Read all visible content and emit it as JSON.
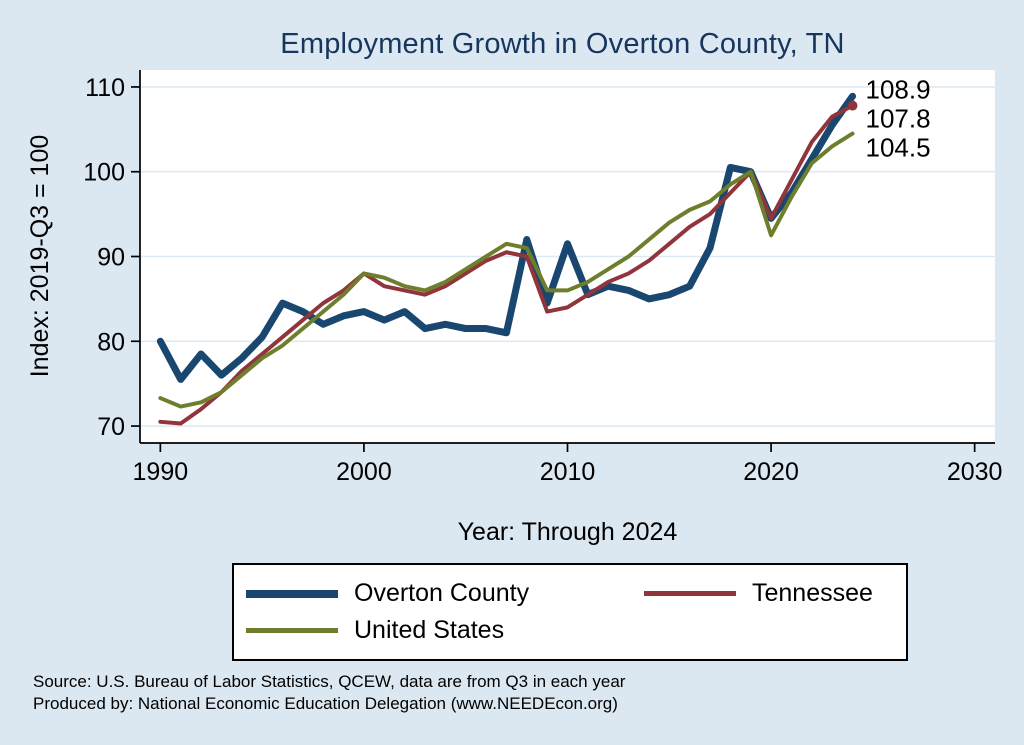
{
  "page_background": "#dbe8f2",
  "chart_data": {
    "type": "line",
    "title": "Employment Growth in Overton County, TN",
    "title_color": "#17365d",
    "xlabel": "Year: Through 2024",
    "ylabel": "Index: 2019-Q3 = 100",
    "xlim": [
      1989,
      2031
    ],
    "ylim": [
      68,
      112
    ],
    "xticks": [
      1990,
      2000,
      2010,
      2020,
      2030
    ],
    "yticks": [
      70,
      80,
      90,
      100,
      110
    ],
    "grid": "horizontal-only",
    "gridline_color": "#dde9f3",
    "plot_background": "#ffffff",
    "legend_position": "below-plot",
    "x": [
      1990,
      1991,
      1992,
      1993,
      1994,
      1995,
      1996,
      1997,
      1998,
      1999,
      2000,
      2001,
      2002,
      2003,
      2004,
      2005,
      2006,
      2007,
      2008,
      2009,
      2010,
      2011,
      2012,
      2013,
      2014,
      2015,
      2016,
      2017,
      2018,
      2019,
      2020,
      2021,
      2022,
      2023,
      2024
    ],
    "series": [
      {
        "name": "Overton County",
        "color": "#1a476f",
        "stroke_width": 7,
        "end_label": "108.9",
        "end_marker": false,
        "values": [
          80,
          75.5,
          78.5,
          76,
          78,
          80.5,
          84.5,
          83.5,
          82,
          83,
          83.5,
          82.5,
          83.5,
          81.5,
          82,
          81.5,
          81.5,
          81,
          92,
          84.5,
          91.5,
          85.5,
          86.5,
          86,
          85,
          85.5,
          86.5,
          91,
          100.5,
          100,
          94.5,
          97.5,
          101.5,
          105.5,
          108.9
        ]
      },
      {
        "name": "Tennessee",
        "color": "#90353b",
        "stroke_width": 4,
        "end_label": "107.8",
        "end_marker": true,
        "values": [
          70.5,
          70.3,
          72,
          74,
          76.5,
          78.5,
          80.5,
          82.5,
          84.5,
          86,
          88,
          86.5,
          86,
          85.5,
          86.5,
          88,
          89.5,
          90.5,
          90,
          83.5,
          84,
          85.5,
          87,
          88,
          89.5,
          91.5,
          93.5,
          95,
          97.5,
          100,
          94.5,
          99,
          103.5,
          106.5,
          107.8
        ]
      },
      {
        "name": "United States",
        "color": "#6d7f2c",
        "stroke_width": 4,
        "end_label": "104.5",
        "end_marker": false,
        "values": [
          73.3,
          72.3,
          72.8,
          74,
          76,
          78,
          79.5,
          81.5,
          83.5,
          85.5,
          88,
          87.5,
          86.5,
          86,
          87,
          88.5,
          90,
          91.5,
          91,
          86,
          86,
          87,
          88.5,
          90,
          92,
          94,
          95.5,
          96.5,
          98.5,
          100,
          92.5,
          97,
          101,
          103,
          104.5
        ]
      }
    ],
    "notes": [
      "Source: U.S. Bureau of Labor Statistics, QCEW, data are from Q3 in each year",
      "Produced by: National Economic Education Delegation (www.NEEDEcon.org)"
    ]
  }
}
